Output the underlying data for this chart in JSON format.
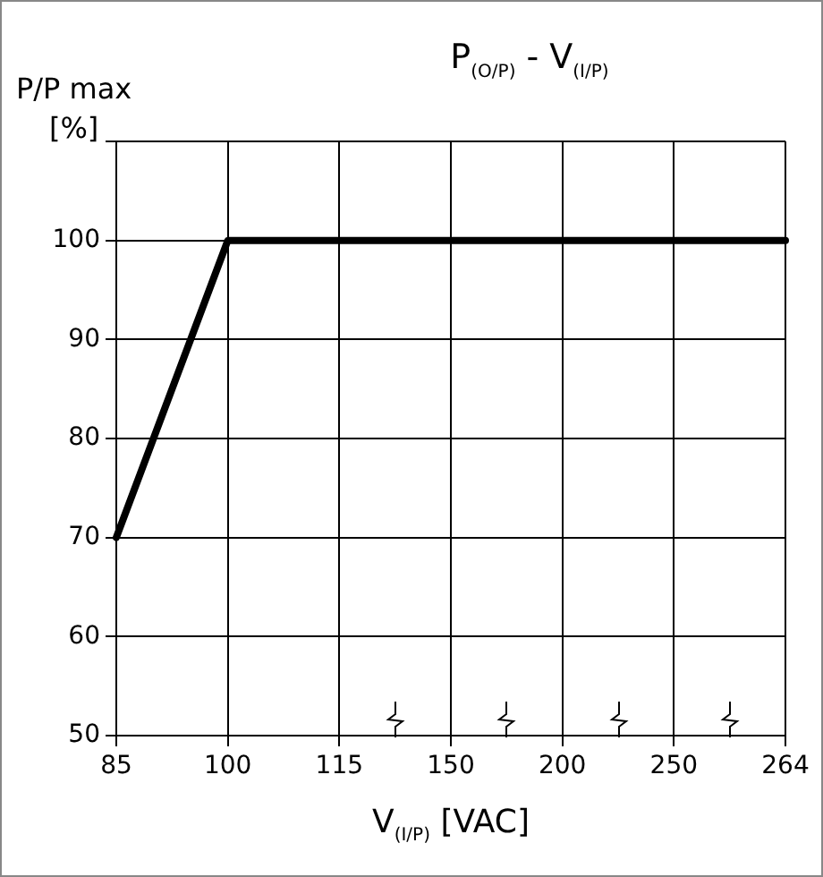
{
  "chart_data": {
    "type": "line",
    "title": "P$_{(O/P)}$ - V$_{(I/P)}$",
    "xlabel": "V$_{(I/P)}$ [VAC]",
    "ylabel": "P/P max\n[%]",
    "categories": [
      "85",
      "100",
      "115",
      "150",
      "200",
      "250",
      "264"
    ],
    "series": [
      {
        "color": "#000000",
        "values": [
          70,
          100,
          100,
          100,
          100,
          100,
          100
        ]
      }
    ],
    "ylim": [
      50,
      110
    ],
    "yticks": [
      50,
      60,
      70,
      80,
      90,
      100,
      {
        "value": 110,
        "label": null
      }
    ],
    "grid": true,
    "legend": false,
    "marker": "none",
    "line_style": "solid"
  }
}
